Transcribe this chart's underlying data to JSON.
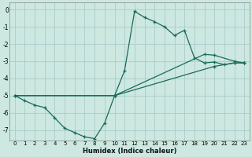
{
  "xlabel": "Humidex (Indice chaleur)",
  "xlim": [
    -0.5,
    23.5
  ],
  "ylim": [
    -7.6,
    0.4
  ],
  "yticks": [
    0,
    -1,
    -2,
    -3,
    -4,
    -5,
    -6,
    -7
  ],
  "xticks": [
    0,
    1,
    2,
    3,
    4,
    5,
    6,
    7,
    8,
    9,
    10,
    11,
    12,
    13,
    14,
    15,
    16,
    17,
    18,
    19,
    20,
    21,
    22,
    23
  ],
  "bg_color": "#cce8e0",
  "line_color": "#1a6b5a",
  "grid_color": "#aacccc",
  "lines": [
    {
      "x": [
        0,
        1,
        2,
        3,
        4,
        5,
        6,
        7,
        8,
        9,
        10,
        11,
        12,
        13,
        14,
        15,
        16,
        17,
        18,
        19,
        20,
        21,
        22,
        23
      ],
      "y": [
        -5.0,
        -5.3,
        -5.55,
        -5.7,
        -6.3,
        -6.9,
        -7.15,
        -7.4,
        -7.5,
        -6.6,
        -5.0,
        -3.55,
        -0.1,
        -0.45,
        -0.7,
        -1.0,
        -1.5,
        -1.2,
        -2.8,
        -3.1,
        -3.05,
        -3.2,
        -3.1,
        -3.1
      ]
    },
    {
      "x": [
        0,
        10,
        19,
        20,
        22,
        23
      ],
      "y": [
        -5.0,
        -5.0,
        -2.6,
        -2.65,
        -3.0,
        -3.1
      ]
    },
    {
      "x": [
        0,
        10,
        20,
        22,
        23
      ],
      "y": [
        -5.0,
        -5.0,
        -3.3,
        -3.1,
        -3.1
      ]
    }
  ]
}
